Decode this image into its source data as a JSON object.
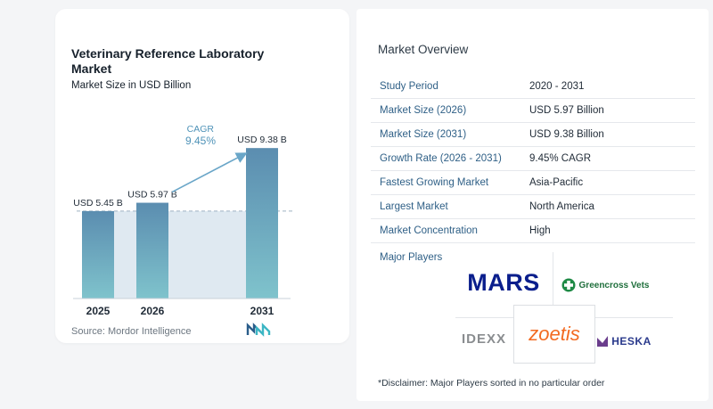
{
  "chart_title": "Veterinary Reference Laboratory Market",
  "chart_subtitle": "Market Size in USD Billion",
  "source": "Source:  Mordor Intelligence",
  "colors": {
    "bar_top": "#5b8db0",
    "bar_bottom": "#7fc3cc",
    "shade": "#dfe9f1",
    "arrow": "#6aa6c8"
  },
  "chart_data": {
    "type": "bar",
    "title": "Veterinary Reference Laboratory Market",
    "subtitle": "Market Size in USD Billion",
    "categories": [
      "2025",
      "2026",
      "2031"
    ],
    "values": [
      5.45,
      5.97,
      9.38
    ],
    "data_labels": [
      "USD 5.45 B",
      "USD 5.97 B",
      "USD 9.38 B"
    ],
    "ylim": [
      0,
      10
    ],
    "cagr_label": "CAGR",
    "cagr_value": "9.45%",
    "grid": false,
    "legend": "none"
  },
  "overview": {
    "title": "Market Overview",
    "rows": [
      {
        "label": "Study Period",
        "value": "2020 - 2031"
      },
      {
        "label": "Market Size (2026)",
        "value": "USD 5.97 Billion"
      },
      {
        "label": "Market Size (2031)",
        "value": "USD 9.38 Billion"
      },
      {
        "label": "Growth Rate (2026 - 2031)",
        "value": "9.45% CAGR"
      },
      {
        "label": "Fastest Growing Market",
        "value": "Asia-Pacific"
      },
      {
        "label": "Largest Market",
        "value": "North America"
      },
      {
        "label": "Market Concentration",
        "value": "High"
      }
    ]
  },
  "players": {
    "title": "Major Players",
    "logos": [
      "MARS",
      "Greencross Vets",
      "IDEXX",
      "zoetis",
      "HESKA"
    ]
  },
  "disclaimer": "*Disclaimer: Major Players sorted in no particular order"
}
